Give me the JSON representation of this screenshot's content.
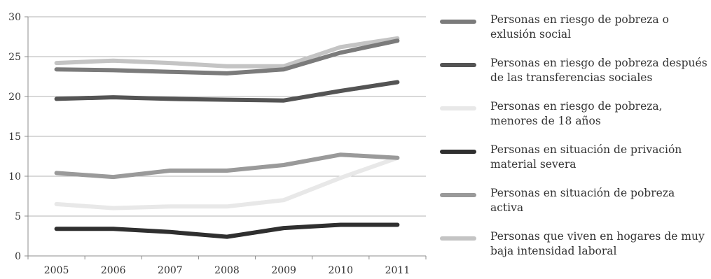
{
  "chart_data": {
    "type": "line",
    "categories": [
      "2005",
      "2006",
      "2007",
      "2008",
      "2009",
      "2010",
      "2011"
    ],
    "ylim": [
      0,
      30
    ],
    "yticks": [
      0,
      5,
      10,
      15,
      20,
      25,
      30
    ],
    "grid": true,
    "legend_position": "right",
    "series": [
      {
        "name": "Personas en riesgo de pobreza o exlusión social",
        "color": "#7b7b7b",
        "values": [
          23.4,
          23.3,
          23.1,
          22.9,
          23.4,
          25.5,
          27.0
        ]
      },
      {
        "name": "Personas en riesgo de pobreza después de las transferencias sociales",
        "color": "#545454",
        "values": [
          19.7,
          19.9,
          19.7,
          19.6,
          19.5,
          20.7,
          21.8
        ]
      },
      {
        "name": "Personas en riesgo de pobreza, menores de 18 años",
        "color": "#e8e8e8",
        "values": [
          6.5,
          6.0,
          6.2,
          6.2,
          7.0,
          9.8,
          12.3
        ]
      },
      {
        "name": "Personas en situación de privación material severa",
        "color": "#2f2f2f",
        "values": [
          3.4,
          3.4,
          3.0,
          2.4,
          3.5,
          3.9,
          3.9
        ]
      },
      {
        "name": "Personas en situación de pobreza activa",
        "color": "#9a9a9a",
        "values": [
          10.4,
          9.9,
          10.7,
          10.7,
          11.4,
          12.7,
          12.3
        ]
      },
      {
        "name": "Personas que viven en hogares de muy baja intensidad laboral",
        "color": "#c4c4c4",
        "values": [
          24.2,
          24.5,
          24.2,
          23.8,
          23.8,
          26.2,
          27.3
        ]
      }
    ]
  }
}
